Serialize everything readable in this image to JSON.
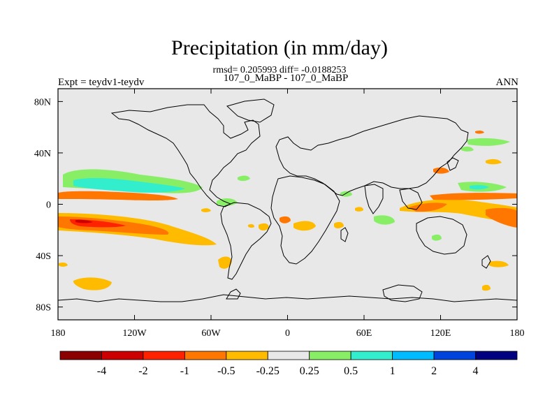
{
  "chart_data": {
    "type": "heatmap",
    "title": "Precipitation (in mm/day)",
    "subtitle_stats": "rmsd= 0.205993 diff= -0.0188253",
    "case_label": "107_0_MaBP - 107_0_MaBP",
    "expt_label": "Expt = teydv1-teydv",
    "season_label": "ANN",
    "x_ticks": [
      "180",
      "120W",
      "60W",
      "0",
      "60E",
      "120E",
      "180"
    ],
    "y_ticks": [
      "80N",
      "40N",
      "0",
      "40S",
      "80S"
    ],
    "x_range": [
      -180,
      180
    ],
    "y_range": [
      -90,
      90
    ],
    "colorbar": {
      "labels": [
        "-4",
        "-2",
        "-1",
        "-0.5",
        "-0.25",
        "0.25",
        "0.5",
        "1",
        "2",
        "4"
      ],
      "colors": [
        "#8b0000",
        "#cc0000",
        "#ff2200",
        "#ff7700",
        "#ffbb00",
        "#e8e8e8",
        "#88ee66",
        "#33eecc",
        "#00bbff",
        "#0044dd",
        "#000080"
      ]
    },
    "anomalies": [
      {
        "lon": -170,
        "lat": 8,
        "level": "-0.5"
      },
      {
        "lon": -150,
        "lat": 15,
        "level": "0.5"
      },
      {
        "lon": -140,
        "lat": 16,
        "level": "1"
      },
      {
        "lon": -150,
        "lat": -14,
        "level": "-1"
      },
      {
        "lon": -160,
        "lat": -13,
        "level": "-2"
      },
      {
        "lon": -140,
        "lat": -18,
        "level": "-0.5"
      },
      {
        "lon": 110,
        "lat": -3,
        "level": "-1"
      },
      {
        "lon": 150,
        "lat": 14,
        "level": "1"
      },
      {
        "lon": 150,
        "lat": 5,
        "level": "-0.5"
      },
      {
        "lon": 170,
        "lat": -8,
        "level": "-1"
      },
      {
        "lon": 130,
        "lat": 45,
        "level": "-0.5"
      },
      {
        "lon": 160,
        "lat": 37,
        "level": "0.5"
      },
      {
        "lon": -140,
        "lat": -62,
        "level": "-0.25"
      },
      {
        "lon": -42,
        "lat": -45,
        "level": "-0.25"
      },
      {
        "lon": -5,
        "lat": -15,
        "level": "-0.5"
      },
      {
        "lon": 10,
        "lat": -15,
        "level": "-0.25"
      },
      {
        "lon": 65,
        "lat": -10,
        "level": "0.25"
      },
      {
        "lon": 135,
        "lat": -25,
        "level": "0.25"
      }
    ]
  }
}
